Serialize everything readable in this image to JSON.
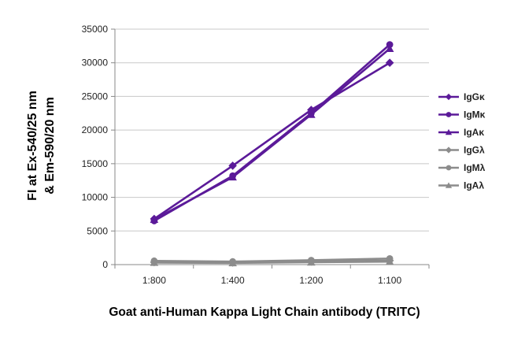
{
  "chart_data": {
    "type": "line",
    "title": "",
    "xlabel": "Goat anti-Human Kappa Light Chain antibody (TRITC)",
    "ylabel": [
      "FI at Ex-540/25 nm",
      "& Em-590/20 nm"
    ],
    "categories": [
      "1:800",
      "1:400",
      "1:200",
      "1:100"
    ],
    "ylim": [
      0,
      35000
    ],
    "yticks": [
      "0",
      "5000",
      "10000",
      "15000",
      "20000",
      "25000",
      "30000",
      "35000"
    ],
    "grid": "horizontal",
    "legend_position": "right",
    "series": [
      {
        "name": "IgGκ",
        "values": [
          6800,
          14700,
          23000,
          30000
        ],
        "color": "#5b1a99",
        "marker": "diamond"
      },
      {
        "name": "IgMκ",
        "values": [
          6500,
          13200,
          22500,
          32700
        ],
        "color": "#5b1a99",
        "marker": "circle"
      },
      {
        "name": "IgAκ",
        "values": [
          6700,
          13000,
          22300,
          32100
        ],
        "color": "#5b1a99",
        "marker": "triangle"
      },
      {
        "name": "IgGλ",
        "values": [
          350,
          300,
          450,
          600
        ],
        "color": "#8c8c8c",
        "marker": "diamond"
      },
      {
        "name": "IgMλ",
        "values": [
          550,
          450,
          650,
          900
        ],
        "color": "#8c8c8c",
        "marker": "circle"
      },
      {
        "name": "IgAλ",
        "values": [
          300,
          250,
          350,
          450
        ],
        "color": "#8c8c8c",
        "marker": "triangle"
      }
    ]
  }
}
